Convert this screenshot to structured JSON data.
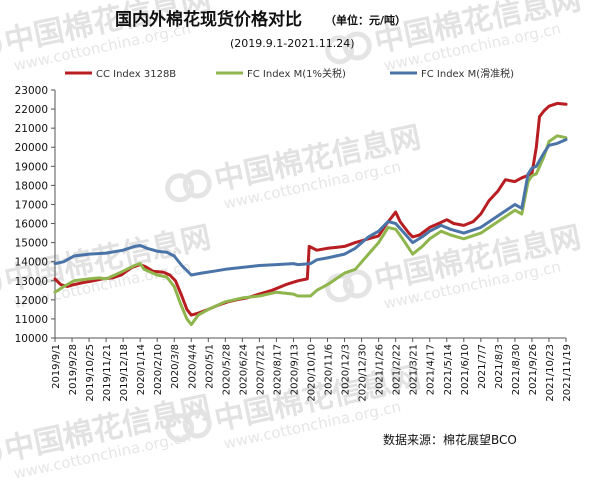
{
  "watermark": {
    "cn": "中国棉花信息网",
    "url": "www.cottonchina.org.cn"
  },
  "chart_data": {
    "type": "line",
    "title": "国内外棉花现货价格对比",
    "unit_note": "（单位：元/吨）",
    "subtitle": "(2019.9.1-2021.11.24)",
    "source": "数据来源：棉花展望BCO",
    "ylim": [
      10000,
      23000
    ],
    "y_ticks": [
      10000,
      11000,
      12000,
      13000,
      14000,
      15000,
      16000,
      17000,
      18000,
      19000,
      20000,
      21000,
      22000,
      23000
    ],
    "x_start": "2019/9/1",
    "x_end": "2021/11/19",
    "x_ticks": [
      "2019/9/1",
      "2019/9/28",
      "2019/10/25",
      "2019/11/21",
      "2019/12/18",
      "2020/1/14",
      "2020/2/10",
      "2020/3/8",
      "2020/4/4",
      "2020/5/1",
      "2020/5/28",
      "2020/6/24",
      "2020/7/21",
      "2020/8/17",
      "2020/9/13",
      "2020/10/10",
      "2020/11/6",
      "2020/12/3",
      "2020/12/30",
      "2021/1/26",
      "2021/2/22",
      "2021/3/21",
      "2021/4/17",
      "2021/5/14",
      "2021/6/10",
      "2021/7/7",
      "2021/8/3",
      "2021/8/30",
      "2021/9/26",
      "2021/10/23",
      "2021/11/19"
    ],
    "grid": false,
    "legend_position": "top",
    "series": [
      {
        "name": "CC Index 3128B",
        "color": "#b81d22",
        "points": [
          [
            "2019/9/1",
            13100
          ],
          [
            "2019/9/10",
            12800
          ],
          [
            "2019/9/20",
            12700
          ],
          [
            "2019/10/1",
            12800
          ],
          [
            "2019/10/15",
            12900
          ],
          [
            "2019/11/1",
            13000
          ],
          [
            "2019/11/15",
            13100
          ],
          [
            "2019/12/1",
            13150
          ],
          [
            "2019/12/15",
            13300
          ],
          [
            "2020/1/1",
            13700
          ],
          [
            "2020/1/14",
            13850
          ],
          [
            "2020/1/22",
            13750
          ],
          [
            "2020/2/3",
            13500
          ],
          [
            "2020/2/20",
            13450
          ],
          [
            "2020/3/1",
            13300
          ],
          [
            "2020/3/10",
            13000
          ],
          [
            "2020/3/20",
            12200
          ],
          [
            "2020/3/28",
            11500
          ],
          [
            "2020/4/4",
            11200
          ],
          [
            "2020/4/15",
            11300
          ],
          [
            "2020/5/1",
            11500
          ],
          [
            "2020/5/15",
            11700
          ],
          [
            "2020/6/1",
            11900
          ],
          [
            "2020/6/15",
            12000
          ],
          [
            "2020/7/1",
            12100
          ],
          [
            "2020/7/21",
            12300
          ],
          [
            "2020/8/10",
            12500
          ],
          [
            "2020/9/1",
            12800
          ],
          [
            "2020/9/20",
            13000
          ],
          [
            "2020/10/5",
            13100
          ],
          [
            "2020/10/8",
            14800
          ],
          [
            "2020/10/20",
            14600
          ],
          [
            "2020/11/6",
            14700
          ],
          [
            "2020/11/20",
            14750
          ],
          [
            "2020/12/3",
            14800
          ],
          [
            "2020/12/20",
            15000
          ],
          [
            "2021/1/10",
            15200
          ],
          [
            "2021/1/26",
            15350
          ],
          [
            "2021/2/8",
            16000
          ],
          [
            "2021/2/22",
            16600
          ],
          [
            "2021/3/1",
            16100
          ],
          [
            "2021/3/15",
            15500
          ],
          [
            "2021/3/21",
            15300
          ],
          [
            "2021/4/1",
            15400
          ],
          [
            "2021/4/17",
            15800
          ],
          [
            "2021/5/1",
            16000
          ],
          [
            "2021/5/14",
            16200
          ],
          [
            "2021/5/25",
            16000
          ],
          [
            "2021/6/10",
            15900
          ],
          [
            "2021/6/25",
            16100
          ],
          [
            "2021/7/7",
            16500
          ],
          [
            "2021/7/20",
            17200
          ],
          [
            "2021/8/3",
            17700
          ],
          [
            "2021/8/15",
            18300
          ],
          [
            "2021/8/30",
            18200
          ],
          [
            "2021/9/10",
            18400
          ],
          [
            "2021/9/26",
            18600
          ],
          [
            "2021/10/3",
            20000
          ],
          [
            "2021/10/8",
            21600
          ],
          [
            "2021/10/15",
            21900
          ],
          [
            "2021/10/23",
            22150
          ],
          [
            "2021/11/5",
            22300
          ],
          [
            "2021/11/19",
            22250
          ]
        ]
      },
      {
        "name": "FC Index M(1%关税)",
        "color": "#8fb54d",
        "points": [
          [
            "2019/9/1",
            12400
          ],
          [
            "2019/9/15",
            12700
          ],
          [
            "2019/10/1",
            13000
          ],
          [
            "2019/10/25",
            13100
          ],
          [
            "2019/11/10",
            13150
          ],
          [
            "2019/11/21",
            13100
          ],
          [
            "2019/12/5",
            13300
          ],
          [
            "2019/12/18",
            13500
          ],
          [
            "2020/1/5",
            13800
          ],
          [
            "2020/1/14",
            13900
          ],
          [
            "2020/1/20",
            13600
          ],
          [
            "2020/2/10",
            13300
          ],
          [
            "2020/2/25",
            13200
          ],
          [
            "2020/3/8",
            12700
          ],
          [
            "2020/3/18",
            11800
          ],
          [
            "2020/3/28",
            11000
          ],
          [
            "2020/4/4",
            10700
          ],
          [
            "2020/4/15",
            11200
          ],
          [
            "2020/5/1",
            11500
          ],
          [
            "2020/5/28",
            11900
          ],
          [
            "2020/6/24",
            12100
          ],
          [
            "2020/7/21",
            12200
          ],
          [
            "2020/8/17",
            12400
          ],
          [
            "2020/9/13",
            12300
          ],
          [
            "2020/9/20",
            12200
          ],
          [
            "2020/10/10",
            12200
          ],
          [
            "2020/10/20",
            12500
          ],
          [
            "2020/11/6",
            12800
          ],
          [
            "2020/12/3",
            13400
          ],
          [
            "2020/12/20",
            13600
          ],
          [
            "2021/1/10",
            14400
          ],
          [
            "2021/1/26",
            15000
          ],
          [
            "2021/2/10",
            15800
          ],
          [
            "2021/2/22",
            15700
          ],
          [
            "2021/3/5",
            15200
          ],
          [
            "2021/3/21",
            14400
          ],
          [
            "2021/4/5",
            14800
          ],
          [
            "2021/4/17",
            15200
          ],
          [
            "2021/5/5",
            15600
          ],
          [
            "2021/5/20",
            15400
          ],
          [
            "2021/6/10",
            15200
          ],
          [
            "2021/7/7",
            15500
          ],
          [
            "2021/8/3",
            16100
          ],
          [
            "2021/8/30",
            16700
          ],
          [
            "2021/9/10",
            16500
          ],
          [
            "2021/9/20",
            18200
          ],
          [
            "2021/9/26",
            18500
          ],
          [
            "2021/10/3",
            18600
          ],
          [
            "2021/10/15",
            19500
          ],
          [
            "2021/10/23",
            20300
          ],
          [
            "2021/11/5",
            20600
          ],
          [
            "2021/11/19",
            20500
          ]
        ]
      },
      {
        "name": "FC Index M(滑准税)",
        "color": "#4a74a8",
        "points": [
          [
            "2019/9/1",
            13900
          ],
          [
            "2019/9/15",
            14000
          ],
          [
            "2019/10/1",
            14300
          ],
          [
            "2019/10/25",
            14400
          ],
          [
            "2019/11/21",
            14450
          ],
          [
            "2019/12/18",
            14600
          ],
          [
            "2020/1/5",
            14800
          ],
          [
            "2020/1/14",
            14850
          ],
          [
            "2020/1/25",
            14700
          ],
          [
            "2020/2/10",
            14550
          ],
          [
            "2020/2/25",
            14500
          ],
          [
            "2020/3/8",
            14300
          ],
          [
            "2020/3/20",
            13800
          ],
          [
            "2020/4/4",
            13300
          ],
          [
            "2020/4/20",
            13400
          ],
          [
            "2020/5/10",
            13500
          ],
          [
            "2020/5/28",
            13600
          ],
          [
            "2020/6/24",
            13700
          ],
          [
            "2020/7/21",
            13800
          ],
          [
            "2020/8/17",
            13850
          ],
          [
            "2020/9/13",
            13900
          ],
          [
            "2020/9/20",
            13850
          ],
          [
            "2020/10/10",
            13900
          ],
          [
            "2020/10/20",
            14100
          ],
          [
            "2020/11/6",
            14200
          ],
          [
            "2020/12/3",
            14400
          ],
          [
            "2020/12/20",
            14700
          ],
          [
            "2021/1/10",
            15300
          ],
          [
            "2021/1/26",
            15600
          ],
          [
            "2021/2/10",
            16100
          ],
          [
            "2021/2/22",
            16000
          ],
          [
            "2021/3/5",
            15600
          ],
          [
            "2021/3/21",
            15000
          ],
          [
            "2021/4/5",
            15300
          ],
          [
            "2021/4/17",
            15600
          ],
          [
            "2021/5/5",
            15900
          ],
          [
            "2021/5/20",
            15700
          ],
          [
            "2021/6/10",
            15500
          ],
          [
            "2021/7/7",
            15800
          ],
          [
            "2021/8/3",
            16400
          ],
          [
            "2021/8/30",
            17000
          ],
          [
            "2021/9/10",
            16800
          ],
          [
            "2021/9/20",
            18600
          ],
          [
            "2021/9/26",
            18900
          ],
          [
            "2021/10/3",
            19000
          ],
          [
            "2021/10/15",
            19700
          ],
          [
            "2021/10/23",
            20100
          ],
          [
            "2021/11/5",
            20200
          ],
          [
            "2021/11/19",
            20400
          ]
        ]
      }
    ]
  }
}
